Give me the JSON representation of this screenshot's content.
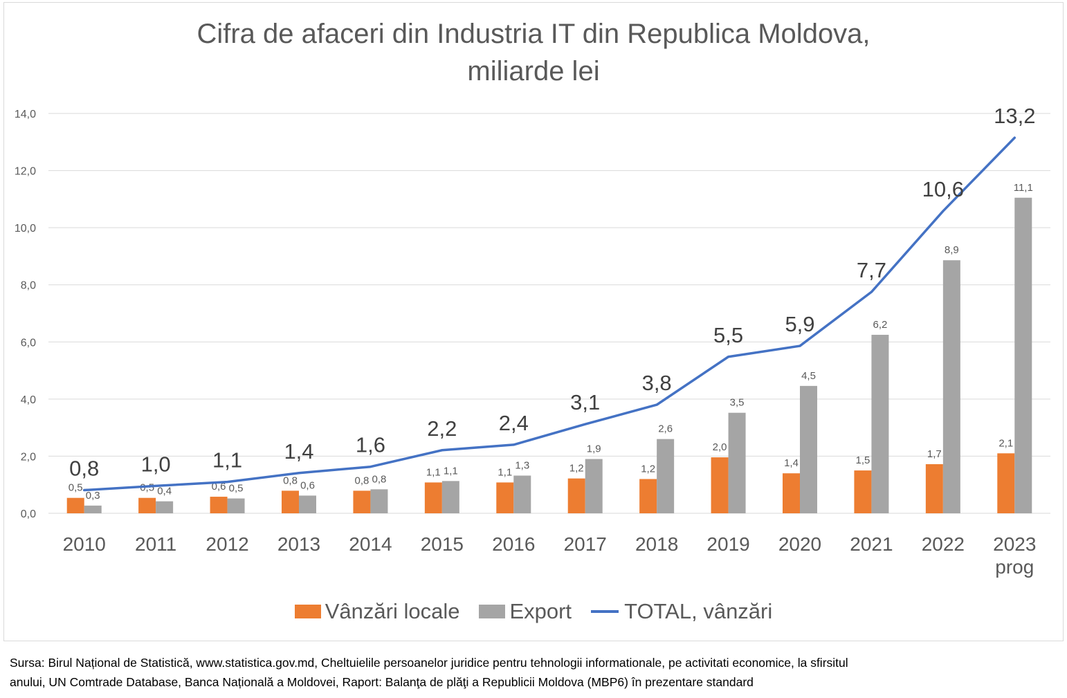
{
  "chart_data": {
    "type": "bar",
    "title_lines": [
      "Cifra de afaceri din Industria IT din Republica Moldova,",
      "miliarde lei"
    ],
    "categories": [
      [
        "2010"
      ],
      [
        "2011"
      ],
      [
        "2012"
      ],
      [
        "2013"
      ],
      [
        "2014"
      ],
      [
        "2015"
      ],
      [
        "2016"
      ],
      [
        "2017"
      ],
      [
        "2018"
      ],
      [
        "2019"
      ],
      [
        "2020"
      ],
      [
        "2021"
      ],
      [
        "2022"
      ],
      [
        "2023",
        "prog"
      ]
    ],
    "ylim": [
      0,
      14
    ],
    "yticks": [
      0,
      2,
      4,
      6,
      8,
      10,
      12,
      14
    ],
    "ytick_labels": [
      "0,0",
      "2,0",
      "4,0",
      "6,0",
      "8,0",
      "10,0",
      "12,0",
      "14,0"
    ],
    "grid": true,
    "legend_position": "bottom",
    "series": [
      {
        "name": "Vânzări locale",
        "type": "bar",
        "color": "#ed7d31",
        "values": [
          0.54,
          0.54,
          0.58,
          0.79,
          0.79,
          1.08,
          1.08,
          1.22,
          1.2,
          1.96,
          1.4,
          1.5,
          1.72,
          2.1
        ],
        "labels": [
          "0,5",
          "0,5",
          "0,6",
          "0,8",
          "0,8",
          "1,1",
          "1,1",
          "1,2",
          "1,2",
          "2,0",
          "1,4",
          "1,5",
          "1,7",
          "2,1"
        ]
      },
      {
        "name": "Export",
        "type": "bar",
        "color": "#a5a5a5",
        "values": [
          0.27,
          0.42,
          0.52,
          0.62,
          0.84,
          1.13,
          1.32,
          1.9,
          2.6,
          3.52,
          4.46,
          6.25,
          8.86,
          11.05
        ],
        "labels": [
          "0,3",
          "0,4",
          "0,5",
          "0,6",
          "0,8",
          "1,1",
          "1,3",
          "1,9",
          "2,6",
          "3,5",
          "4,5",
          "6,2",
          "8,9",
          "11,1"
        ]
      },
      {
        "name": "TOTAL, vânzări",
        "type": "line",
        "color": "#4472c4",
        "values": [
          0.81,
          0.96,
          1.1,
          1.41,
          1.63,
          2.21,
          2.4,
          3.12,
          3.8,
          5.48,
          5.86,
          7.75,
          10.58,
          13.15
        ],
        "labels": [
          "0,8",
          "1,0",
          "1,1",
          "1,4",
          "1,6",
          "2,2",
          "2,4",
          "3,1",
          "3,8",
          "5,5",
          "5,9",
          "7,7",
          "10,6",
          "13,2"
        ]
      }
    ]
  },
  "source_lines": [
    "Sursa: Birul Național de Statistică, www.statistica.gov.md, Cheltuielile persoanelor juridice pentru tehnologii informationale, pe activitati economice, la sfirsitul",
    "anului, UN Comtrade Database, Banca Națională a Moldovei, Raport: Balanţa de plăţi a Republicii Moldova (MBP6) în prezentare standard"
  ]
}
